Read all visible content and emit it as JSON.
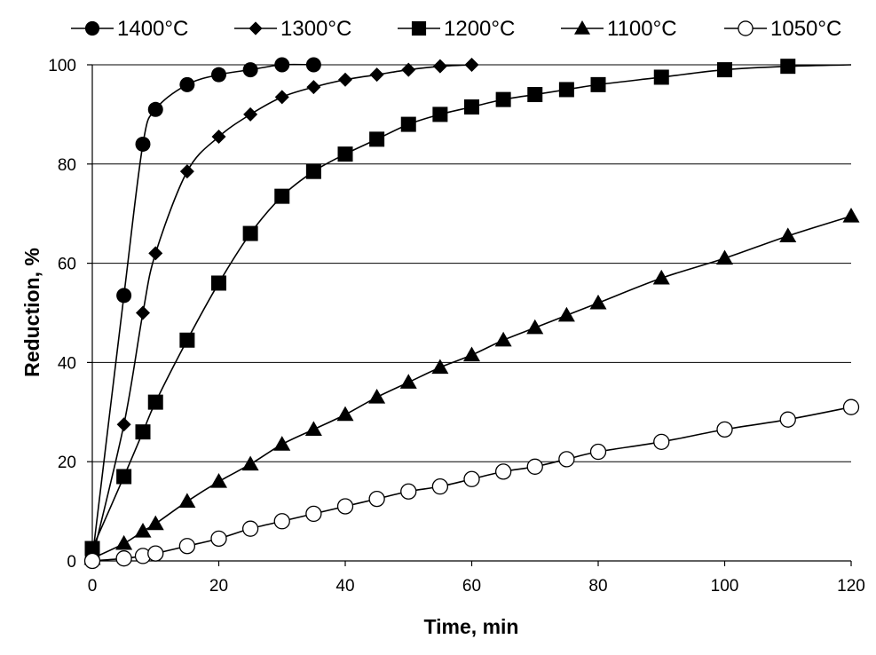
{
  "chart_data": {
    "type": "line",
    "title": "",
    "xlabel": "Time, min",
    "ylabel": "Reduction, %",
    "xlim": [
      0,
      120
    ],
    "ylim": [
      0,
      100
    ],
    "x_ticks": [
      0,
      20,
      40,
      60,
      80,
      100,
      120
    ],
    "y_ticks": [
      0,
      20,
      40,
      60,
      80,
      100
    ],
    "grid": "horizontal",
    "legend_position": "top",
    "series": [
      {
        "name": "1400°C",
        "marker": "circle-filled",
        "x": [
          0,
          5,
          8,
          10,
          15,
          20,
          25,
          30,
          35
        ],
        "y": [
          0.5,
          53.5,
          84,
          91,
          96,
          98,
          99,
          100,
          100
        ]
      },
      {
        "name": "1300°C",
        "marker": "diamond-filled",
        "x": [
          0,
          5,
          8,
          10,
          15,
          20,
          25,
          30,
          35,
          40,
          45,
          50,
          55,
          60
        ],
        "y": [
          0.5,
          27.5,
          50,
          62,
          78.5,
          85.5,
          90,
          93.5,
          95.5,
          97,
          98,
          99,
          99.7,
          100
        ]
      },
      {
        "name": "1200°C",
        "marker": "square-filled",
        "x": [
          0,
          5,
          8,
          10,
          15,
          20,
          25,
          30,
          35,
          40,
          45,
          50,
          55,
          60,
          65,
          70,
          75,
          80,
          90,
          100,
          110
        ],
        "y": [
          2.5,
          17,
          26,
          32,
          44.5,
          56,
          66,
          73.5,
          78.5,
          82,
          85,
          88,
          90,
          91.5,
          93,
          94,
          95,
          96,
          97.5,
          99,
          99.7
        ]
      },
      {
        "name": "1100°C",
        "marker": "triangle-filled",
        "x": [
          0,
          5,
          8,
          10,
          15,
          20,
          25,
          30,
          35,
          40,
          45,
          50,
          55,
          60,
          65,
          70,
          75,
          80,
          90,
          100,
          110,
          120
        ],
        "y": [
          0.5,
          3.5,
          6,
          7.5,
          12,
          16,
          19.5,
          23.5,
          26.5,
          29.5,
          33,
          36,
          39,
          41.5,
          44.5,
          47,
          49.5,
          52,
          57,
          61,
          65.5,
          69.5
        ]
      },
      {
        "name": "1050°C",
        "marker": "circle-open",
        "x": [
          0,
          5,
          8,
          10,
          15,
          20,
          25,
          30,
          35,
          40,
          45,
          50,
          55,
          60,
          65,
          70,
          75,
          80,
          90,
          100,
          110,
          120
        ],
        "y": [
          0,
          0.5,
          1,
          1.5,
          3,
          4.5,
          6.5,
          8,
          9.5,
          11,
          12.5,
          14,
          15,
          16.5,
          18,
          19,
          20.5,
          22,
          24,
          26.5,
          28.5,
          31
        ]
      }
    ],
    "tail_curve": {
      "series": "1200°C",
      "x": [
        110,
        120
      ],
      "y": [
        99.7,
        100
      ]
    }
  }
}
